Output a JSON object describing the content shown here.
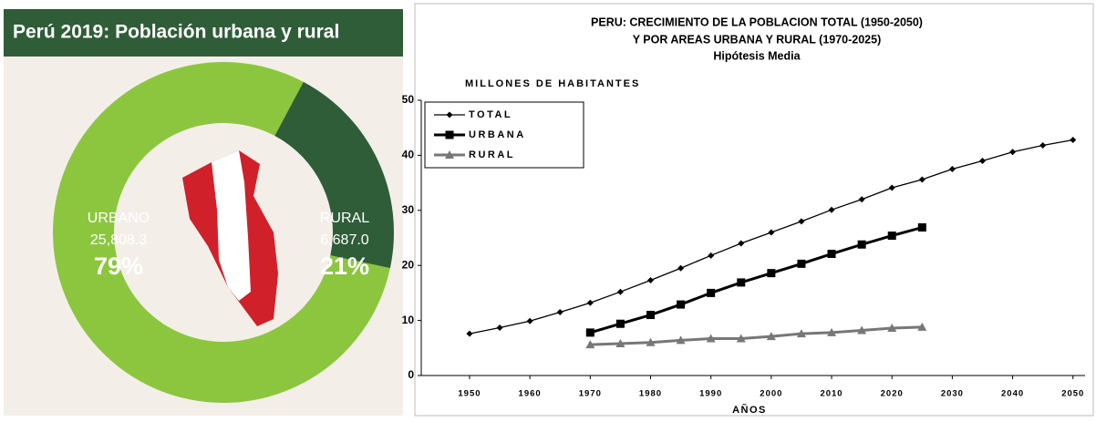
{
  "chart_data": [
    {
      "type": "donut",
      "title": "Perú 2019: Población urbana y rural",
      "categories": [
        "URBANO",
        "RURAL"
      ],
      "values": [
        25808.3,
        6687.0
      ],
      "value_labels": [
        "25,808.3",
        "6,687.0"
      ],
      "percent_labels": [
        "79%",
        "21%"
      ],
      "colors": [
        "#8cc63f",
        "#2f5d38"
      ]
    },
    {
      "type": "line",
      "title": [
        "PERU: CRECIMIENTO DE LA POBLACION TOTAL (1950-2050)",
        "Y POR AREAS URBANA  Y RURAL (1970-2025)",
        "Hipótesis Media"
      ],
      "y_label": "MILLONES DE HABITANTES",
      "x_label": "AÑOS",
      "x": [
        1950,
        1955,
        1960,
        1965,
        1970,
        1975,
        1980,
        1985,
        1990,
        1995,
        2000,
        2005,
        2010,
        2015,
        2020,
        2025,
        2030,
        2035,
        2040,
        2045,
        2050
      ],
      "series": [
        {
          "name": "TOTAL",
          "color": "#000000",
          "marker": "diamond",
          "values": [
            7.6,
            8.7,
            9.9,
            11.5,
            13.2,
            15.2,
            17.3,
            19.5,
            21.8,
            24.0,
            26.0,
            28.0,
            30.1,
            32.0,
            34.1,
            35.6,
            37.5,
            39.0,
            40.6,
            41.8,
            42.8
          ]
        },
        {
          "name": "URBANA",
          "color": "#000000",
          "marker": "square",
          "values": [
            null,
            null,
            null,
            null,
            7.8,
            9.4,
            11.0,
            12.9,
            15.0,
            16.9,
            18.6,
            20.3,
            22.1,
            23.8,
            25.4,
            26.9,
            null,
            null,
            null,
            null,
            null
          ]
        },
        {
          "name": "RURAL",
          "color": "#777777",
          "marker": "triangle",
          "values": [
            null,
            null,
            null,
            null,
            5.6,
            5.8,
            6.0,
            6.4,
            6.7,
            6.7,
            7.1,
            7.6,
            7.8,
            8.2,
            8.6,
            8.8,
            null,
            null,
            null,
            null,
            null
          ]
        }
      ],
      "xlim": [
        1942,
        2052
      ],
      "xticks": [
        1950,
        1960,
        1970,
        1980,
        1990,
        2000,
        2010,
        2020,
        2030,
        2040,
        2050
      ],
      "ylim": [
        0,
        50
      ],
      "yticks": [
        0,
        10,
        20,
        30,
        40,
        50
      ],
      "legend": "upper left"
    }
  ]
}
